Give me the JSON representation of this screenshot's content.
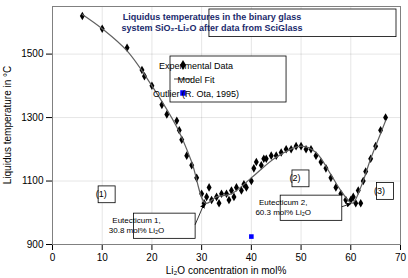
{
  "chart_data": {
    "type": "scatter",
    "title": "Liquidus temperatures in the binary glass system SiO₂-Li₂O after data from SciGlass",
    "x_label": "Li₂O concentration in mol%",
    "y_label": "Liquidus temperature in °C",
    "xlim": [
      0,
      70
    ],
    "xticks": [
      0,
      10,
      20,
      30,
      40,
      50,
      60,
      70
    ],
    "ylim": [
      900,
      1650
    ],
    "yticks": [
      900,
      1100,
      1300,
      1500
    ],
    "grid": true,
    "legend": "center",
    "series": [
      {
        "name": "Experimental Data",
        "type": "scatter",
        "marker": "diamond",
        "color": "#000000",
        "x": [
          6,
          10,
          15,
          18,
          18.5,
          20,
          22,
          23,
          25,
          25.5,
          26,
          27,
          28,
          29,
          30,
          30.5,
          31,
          31.5,
          32,
          33,
          33.5,
          34,
          35,
          35.5,
          36,
          36.5,
          37,
          38,
          38.5,
          39,
          40,
          40.5,
          41,
          42,
          42.5,
          43,
          44,
          45,
          46,
          47,
          48,
          49,
          50,
          51,
          52,
          53,
          54,
          55,
          56,
          57,
          58,
          59,
          60,
          60.5,
          61,
          61.5,
          62,
          62.5,
          63,
          64,
          65,
          66,
          67
        ],
        "values": [
          1620,
          1580,
          1520,
          1450,
          1430,
          1400,
          1340,
          1310,
          1290,
          1260,
          1230,
          1180,
          1150,
          1110,
          1060,
          1030,
          1050,
          1080,
          1040,
          1050,
          1030,
          1060,
          1060,
          1040,
          1070,
          1050,
          1080,
          1070,
          1090,
          1080,
          1100,
          1140,
          1160,
          1150,
          1170,
          1170,
          1180,
          1180,
          1190,
          1200,
          1200,
          1210,
          1210,
          1200,
          1200,
          1180,
          1160,
          1140,
          1110,
          1080,
          1060,
          1040,
          1040,
          1050,
          1030,
          1070,
          1030,
          1100,
          1130,
          1170,
          1210,
          1260,
          1300
        ]
      },
      {
        "name": "Model Fit",
        "type": "line",
        "color": "#606060",
        "x": [
          6,
          10,
          15,
          20,
          25,
          28,
          30.8,
          33,
          36,
          40,
          45,
          50,
          53,
          56,
          58,
          60.3,
          62,
          64,
          66,
          67
        ],
        "values": [
          1625,
          1580,
          1510,
          1400,
          1270,
          1160,
          1030,
          1050,
          1060,
          1110,
          1175,
          1210,
          1190,
          1120,
          1070,
          1030,
          1080,
          1170,
          1250,
          1290
        ]
      },
      {
        "name": "Outlier (R. Ota, 1995)",
        "type": "scatter",
        "marker": "square",
        "color": "#0000ff",
        "x": [
          40
        ],
        "values": [
          925
        ]
      }
    ],
    "region_labels": [
      "(1)",
      "(2)",
      "(3)"
    ],
    "annotations": [
      {
        "text": "Eutecticum 1, 30.8 mol% Li₂O",
        "x": 30.8,
        "y": 1030
      },
      {
        "text": "Eutecticum 2, 60.3 mol% Li₂O",
        "x": 60.3,
        "y": 1030
      }
    ]
  }
}
